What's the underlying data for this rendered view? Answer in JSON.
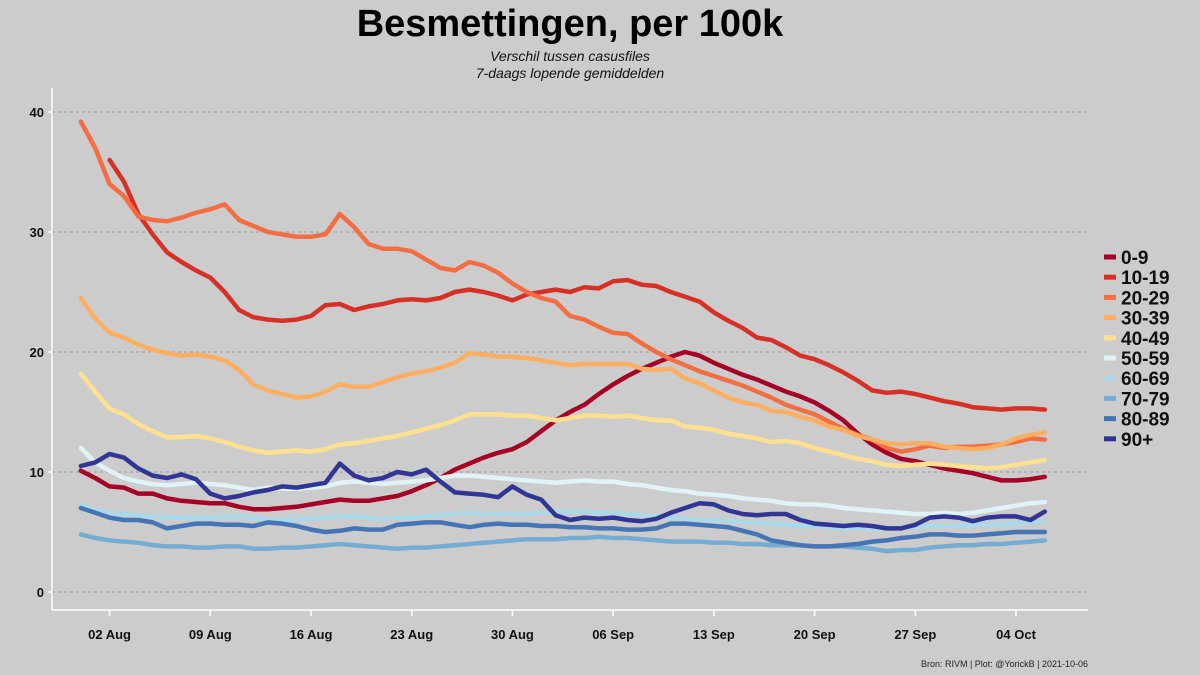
{
  "chart_data": {
    "type": "line",
    "title": "Besmettingen, per 100k",
    "subtitle_lines": [
      "Verschil tussen casusfiles",
      "7-daags lopende gemiddelden"
    ],
    "caption": "Bron: RIVM | Plot: @YorickB  |  2021-10-06",
    "xlabel": "",
    "ylabel": "",
    "x_dates": [
      "2021-07-31",
      "2021-08-01",
      "2021-08-02",
      "2021-08-03",
      "2021-08-04",
      "2021-08-05",
      "2021-08-06",
      "2021-08-07",
      "2021-08-08",
      "2021-08-09",
      "2021-08-10",
      "2021-08-11",
      "2021-08-12",
      "2021-08-13",
      "2021-08-14",
      "2021-08-15",
      "2021-08-16",
      "2021-08-17",
      "2021-08-18",
      "2021-08-19",
      "2021-08-20",
      "2021-08-21",
      "2021-08-22",
      "2021-08-23",
      "2021-08-24",
      "2021-08-25",
      "2021-08-26",
      "2021-08-27",
      "2021-08-28",
      "2021-08-29",
      "2021-08-30",
      "2021-08-31",
      "2021-09-01",
      "2021-09-02",
      "2021-09-03",
      "2021-09-04",
      "2021-09-05",
      "2021-09-06",
      "2021-09-07",
      "2021-09-08",
      "2021-09-09",
      "2021-09-10",
      "2021-09-11",
      "2021-09-12",
      "2021-09-13",
      "2021-09-14",
      "2021-09-15",
      "2021-09-16",
      "2021-09-17",
      "2021-09-18",
      "2021-09-19",
      "2021-09-20",
      "2021-09-21",
      "2021-09-22",
      "2021-09-23",
      "2021-09-24",
      "2021-09-25",
      "2021-09-26",
      "2021-09-27",
      "2021-09-28",
      "2021-09-29",
      "2021-09-30",
      "2021-10-01",
      "2021-10-02",
      "2021-10-03",
      "2021-10-04",
      "2021-10-05",
      "2021-10-06"
    ],
    "x_tick_dates": [
      "2021-08-02",
      "2021-08-09",
      "2021-08-16",
      "2021-08-23",
      "2021-08-30",
      "2021-09-06",
      "2021-09-13",
      "2021-09-20",
      "2021-09-27",
      "2021-10-04"
    ],
    "x_tick_labels": [
      "02 Aug",
      "09 Aug",
      "16 Aug",
      "23 Aug",
      "30 Aug",
      "06 Sep",
      "13 Sep",
      "20 Sep",
      "27 Sep",
      "04 Oct"
    ],
    "y_ticks": [
      0,
      10,
      20,
      30,
      40
    ],
    "ylim": [
      -1.5,
      42
    ],
    "grid": "horizontal dotted",
    "legend_position": "right",
    "series": [
      {
        "name": "0-9",
        "color": "#a50026",
        "start_index": 0,
        "values": [
          10.1,
          9.5,
          8.8,
          8.7,
          8.2,
          8.2,
          7.8,
          7.6,
          7.5,
          7.4,
          7.4,
          7.1,
          6.9,
          6.9,
          7.0,
          7.1,
          7.3,
          7.5,
          7.7,
          7.6,
          7.6,
          7.8,
          8.0,
          8.4,
          8.9,
          9.5,
          10.2,
          10.7,
          11.2,
          11.6,
          11.9,
          12.5,
          13.4,
          14.3,
          15.0,
          15.6,
          16.5,
          17.3,
          18.0,
          18.6,
          19.1,
          19.6,
          20.0,
          19.7,
          19.1,
          18.6,
          18.1,
          17.7,
          17.2,
          16.7,
          16.3,
          15.8,
          15.1,
          14.3,
          13.2,
          12.3,
          11.6,
          11.1,
          10.9,
          10.6,
          10.3,
          10.1,
          9.9,
          9.6,
          9.3,
          9.3,
          9.4,
          9.6
        ]
      },
      {
        "name": "10-19",
        "color": "#d73027",
        "start_index": 2,
        "values": [
          36.0,
          34.2,
          31.5,
          29.8,
          28.3,
          27.5,
          26.8,
          26.2,
          25.0,
          23.5,
          22.9,
          22.7,
          22.6,
          22.7,
          23.0,
          23.9,
          24.0,
          23.5,
          23.8,
          24.0,
          24.3,
          24.4,
          24.3,
          24.5,
          25.0,
          25.2,
          25.0,
          24.7,
          24.3,
          24.8,
          25.0,
          25.2,
          25.0,
          25.4,
          25.3,
          25.9,
          26.0,
          25.6,
          25.5,
          25.0,
          24.6,
          24.2,
          23.3,
          22.6,
          22.0,
          21.2,
          21.0,
          20.4,
          19.7,
          19.4,
          18.9,
          18.3,
          17.6,
          16.8,
          16.6,
          16.7,
          16.5,
          16.2,
          15.9,
          15.7,
          15.4,
          15.3,
          15.2,
          15.3,
          15.3,
          15.2
        ]
      },
      {
        "name": "20-29",
        "color": "#f46d43",
        "start_index": 0,
        "values": [
          39.2,
          37.0,
          34.0,
          33.0,
          31.3,
          31.0,
          30.9,
          31.2,
          31.6,
          31.9,
          32.3,
          31.0,
          30.5,
          30.0,
          29.8,
          29.6,
          29.6,
          29.8,
          31.5,
          30.4,
          29.0,
          28.6,
          28.6,
          28.4,
          27.7,
          27.0,
          26.8,
          27.5,
          27.2,
          26.6,
          25.7,
          25.0,
          24.5,
          24.2,
          23.0,
          22.7,
          22.1,
          21.6,
          21.5,
          20.7,
          20.0,
          19.4,
          18.9,
          18.4,
          18.0,
          17.6,
          17.2,
          16.7,
          16.2,
          15.6,
          15.2,
          14.8,
          14.2,
          13.6,
          13.1,
          12.7,
          12.0,
          11.7,
          11.9,
          12.2,
          12.0,
          12.1,
          12.1,
          12.2,
          12.3,
          12.5,
          12.8,
          12.7
        ]
      },
      {
        "name": "30-39",
        "color": "#fdae61",
        "start_index": 0,
        "values": [
          24.5,
          22.8,
          21.6,
          21.2,
          20.6,
          20.2,
          19.9,
          19.7,
          19.8,
          19.6,
          19.3,
          18.5,
          17.3,
          16.8,
          16.5,
          16.2,
          16.3,
          16.7,
          17.3,
          17.1,
          17.1,
          17.5,
          17.9,
          18.2,
          18.4,
          18.7,
          19.1,
          19.9,
          19.8,
          19.6,
          19.6,
          19.5,
          19.3,
          19.1,
          18.9,
          19.0,
          19.0,
          19.0,
          19.0,
          18.6,
          18.5,
          18.6,
          17.8,
          17.4,
          16.8,
          16.2,
          15.8,
          15.6,
          15.1,
          15.0,
          14.6,
          14.3,
          13.8,
          13.5,
          13.0,
          12.7,
          12.4,
          12.3,
          12.4,
          12.4,
          12.1,
          12.0,
          11.9,
          12.0,
          12.3,
          12.8,
          13.1,
          13.3
        ]
      },
      {
        "name": "40-49",
        "color": "#fee090",
        "start_index": 0,
        "values": [
          18.2,
          16.7,
          15.3,
          14.8,
          14.0,
          13.4,
          12.9,
          12.9,
          13.0,
          12.8,
          12.5,
          12.1,
          11.8,
          11.6,
          11.7,
          11.8,
          11.7,
          11.9,
          12.3,
          12.4,
          12.6,
          12.8,
          13.0,
          13.3,
          13.6,
          13.9,
          14.3,
          14.8,
          14.8,
          14.8,
          14.7,
          14.7,
          14.5,
          14.3,
          14.5,
          14.7,
          14.7,
          14.6,
          14.7,
          14.5,
          14.3,
          14.3,
          13.8,
          13.7,
          13.5,
          13.2,
          13.0,
          12.8,
          12.5,
          12.6,
          12.4,
          12.0,
          11.7,
          11.4,
          11.1,
          10.9,
          10.6,
          10.5,
          10.6,
          10.7,
          10.6,
          10.5,
          10.4,
          10.3,
          10.4,
          10.6,
          10.8,
          11.0
        ]
      },
      {
        "name": "50-59",
        "color": "#e0f3f8",
        "start_index": 0,
        "values": [
          12.0,
          10.8,
          10.1,
          9.5,
          9.2,
          9.0,
          8.9,
          9.0,
          9.1,
          9.0,
          8.9,
          8.7,
          8.5,
          8.7,
          8.6,
          8.6,
          8.7,
          8.8,
          9.1,
          9.2,
          9.1,
          9.0,
          9.1,
          9.2,
          9.3,
          9.5,
          9.7,
          9.7,
          9.6,
          9.5,
          9.4,
          9.3,
          9.2,
          9.1,
          9.2,
          9.3,
          9.2,
          9.2,
          9.0,
          8.9,
          8.7,
          8.5,
          8.4,
          8.2,
          8.1,
          8.0,
          7.8,
          7.7,
          7.6,
          7.4,
          7.3,
          7.3,
          7.2,
          7.0,
          6.9,
          6.8,
          6.7,
          6.6,
          6.5,
          6.5,
          6.6,
          6.5,
          6.6,
          6.8,
          7.0,
          7.2,
          7.4,
          7.5
        ]
      },
      {
        "name": "60-69",
        "color": "#abd9e9",
        "start_index": 0,
        "values": [
          7.3,
          6.8,
          6.6,
          6.5,
          6.4,
          6.3,
          6.2,
          6.2,
          6.2,
          6.2,
          6.3,
          6.3,
          6.2,
          6.0,
          6.0,
          6.1,
          6.1,
          6.2,
          6.3,
          6.3,
          6.2,
          6.1,
          6.2,
          6.2,
          6.3,
          6.4,
          6.5,
          6.6,
          6.5,
          6.5,
          6.5,
          6.5,
          6.6,
          6.7,
          6.7,
          6.7,
          6.6,
          6.6,
          6.5,
          6.4,
          6.3,
          6.2,
          6.1,
          6.0,
          6.0,
          5.9,
          5.8,
          5.8,
          5.7,
          5.6,
          5.5,
          5.5,
          5.4,
          5.3,
          5.3,
          5.3,
          5.3,
          5.4,
          5.4,
          5.5,
          5.5,
          5.5,
          5.6,
          5.6,
          5.6,
          5.7,
          5.8,
          5.9
        ]
      },
      {
        "name": "70-79",
        "color": "#74add1",
        "start_index": 0,
        "values": [
          4.8,
          4.5,
          4.3,
          4.2,
          4.1,
          3.9,
          3.8,
          3.8,
          3.7,
          3.7,
          3.8,
          3.8,
          3.6,
          3.6,
          3.7,
          3.7,
          3.8,
          3.9,
          4.0,
          3.9,
          3.8,
          3.7,
          3.6,
          3.7,
          3.7,
          3.8,
          3.9,
          4.0,
          4.1,
          4.2,
          4.3,
          4.4,
          4.4,
          4.4,
          4.5,
          4.5,
          4.6,
          4.5,
          4.5,
          4.4,
          4.3,
          4.2,
          4.2,
          4.2,
          4.1,
          4.1,
          4.0,
          4.0,
          3.9,
          3.9,
          3.9,
          3.8,
          3.8,
          3.8,
          3.7,
          3.6,
          3.4,
          3.5,
          3.5,
          3.7,
          3.8,
          3.9,
          3.9,
          4.0,
          4.0,
          4.1,
          4.2,
          4.3
        ]
      },
      {
        "name": "80-89",
        "color": "#4575b4",
        "start_index": 0,
        "values": [
          7.0,
          6.6,
          6.2,
          6.0,
          6.0,
          5.8,
          5.3,
          5.5,
          5.7,
          5.7,
          5.6,
          5.6,
          5.5,
          5.8,
          5.7,
          5.5,
          5.2,
          5.0,
          5.1,
          5.3,
          5.2,
          5.2,
          5.6,
          5.7,
          5.8,
          5.8,
          5.6,
          5.4,
          5.6,
          5.7,
          5.6,
          5.6,
          5.5,
          5.5,
          5.4,
          5.4,
          5.3,
          5.3,
          5.2,
          5.2,
          5.3,
          5.7,
          5.7,
          5.6,
          5.5,
          5.4,
          5.1,
          4.8,
          4.3,
          4.1,
          3.9,
          3.8,
          3.8,
          3.9,
          4.0,
          4.2,
          4.3,
          4.5,
          4.6,
          4.8,
          4.8,
          4.7,
          4.7,
          4.8,
          4.9,
          5.0,
          5.0,
          5.0
        ]
      },
      {
        "name": "90+",
        "color": "#313695",
        "start_index": 0,
        "values": [
          10.5,
          10.8,
          11.5,
          11.2,
          10.3,
          9.7,
          9.5,
          9.8,
          9.4,
          8.2,
          7.8,
          8.0,
          8.3,
          8.5,
          8.8,
          8.7,
          8.9,
          9.1,
          10.7,
          9.7,
          9.3,
          9.5,
          10.0,
          9.8,
          10.2,
          9.2,
          8.3,
          8.2,
          8.1,
          7.9,
          8.8,
          8.1,
          7.7,
          6.4,
          6.0,
          6.2,
          6.1,
          6.2,
          6.0,
          5.9,
          6.1,
          6.6,
          7.0,
          7.4,
          7.3,
          6.8,
          6.5,
          6.4,
          6.5,
          6.5,
          6.0,
          5.7,
          5.6,
          5.5,
          5.6,
          5.5,
          5.3,
          5.3,
          5.6,
          6.2,
          6.3,
          6.2,
          5.9,
          6.2,
          6.3,
          6.3,
          6.0,
          6.7
        ]
      }
    ]
  }
}
